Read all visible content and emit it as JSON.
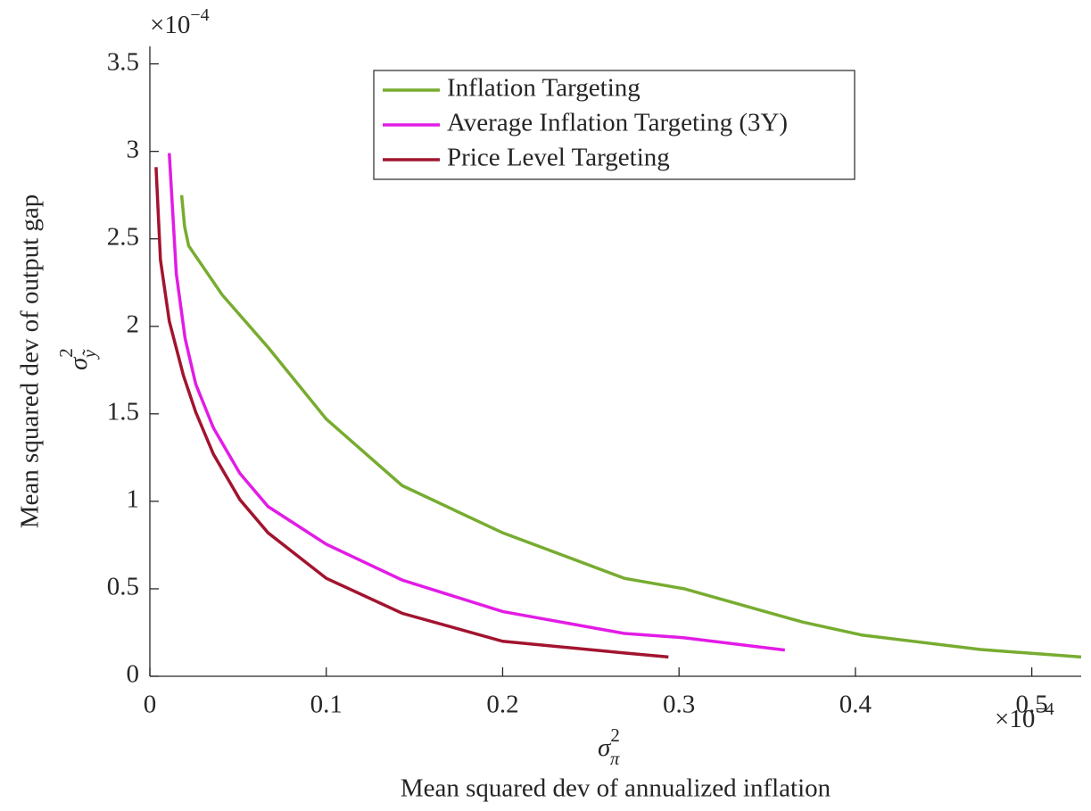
{
  "chart_data": {
    "type": "line",
    "ylabel": "Mean squared dev of output gap",
    "ylabel_symbol": {
      "base": "σ",
      "sup": "2",
      "sub": "ỹ"
    },
    "xlabel": "Mean squared dev of annualized inflation",
    "xlabel_symbol": {
      "base": "σ",
      "sup": "2",
      "sub": "π"
    },
    "y_multiplier": {
      "base": "×10",
      "exp": "−4"
    },
    "x_multiplier": {
      "base": "×10",
      "exp": "−4"
    },
    "xlim": [
      0,
      0.528
    ],
    "ylim": [
      0,
      3.6
    ],
    "xticks": [
      0,
      0.1,
      0.2,
      0.3,
      0.4,
      0.5
    ],
    "yticks": [
      0,
      0.5,
      1,
      1.5,
      2,
      2.5,
      3,
      3.5
    ],
    "grid": false,
    "legend": "top",
    "series": [
      {
        "name": "Inflation Targeting",
        "color": "#77ac30",
        "x": [
          0.018,
          0.0197,
          0.022,
          0.041,
          0.067,
          0.1,
          0.143,
          0.2,
          0.269,
          0.303,
          0.37,
          0.404,
          0.471,
          0.528
        ],
        "values": [
          2.75,
          2.57,
          2.46,
          2.18,
          1.88,
          1.47,
          1.09,
          0.82,
          0.56,
          0.5,
          0.31,
          0.235,
          0.153,
          0.11
        ]
      },
      {
        "name": "Average Inflation Targeting (3Y)",
        "color": "#e21ce6",
        "x": [
          0.011,
          0.015,
          0.02,
          0.026,
          0.036,
          0.051,
          0.067,
          0.1,
          0.143,
          0.2,
          0.269,
          0.303,
          0.36
        ],
        "values": [
          2.99,
          2.3,
          1.93,
          1.67,
          1.42,
          1.16,
          0.97,
          0.755,
          0.55,
          0.37,
          0.245,
          0.22,
          0.15
        ]
      },
      {
        "name": "Price Level Targeting",
        "color": "#a2142f",
        "x": [
          0.0035,
          0.006,
          0.011,
          0.019,
          0.026,
          0.036,
          0.051,
          0.067,
          0.1,
          0.143,
          0.2,
          0.269,
          0.294
        ],
        "values": [
          2.91,
          2.38,
          2.03,
          1.72,
          1.51,
          1.27,
          1.01,
          0.82,
          0.56,
          0.36,
          0.2,
          0.133,
          0.11
        ]
      }
    ]
  }
}
